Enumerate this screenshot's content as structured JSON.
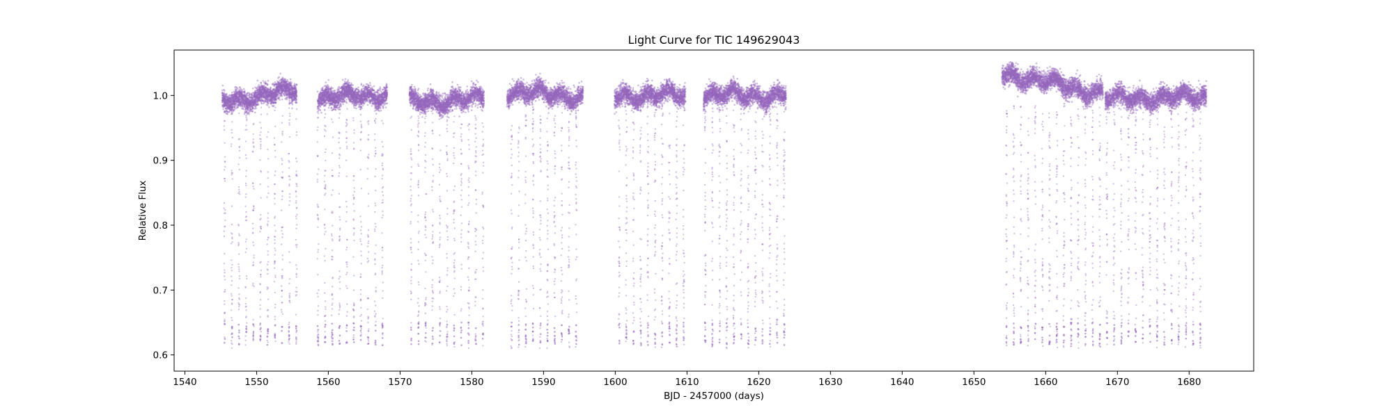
{
  "chart_data": {
    "type": "scatter",
    "title": "Light Curve for TIC 149629043",
    "xlabel": "BJD - 2457000 (days)",
    "ylabel": "Relative Flux",
    "xlim": [
      1538.5,
      1689
    ],
    "ylim": [
      0.575,
      1.07
    ],
    "xticks": [
      1540,
      1550,
      1560,
      1570,
      1580,
      1590,
      1600,
      1610,
      1620,
      1630,
      1640,
      1650,
      1660,
      1670,
      1680
    ],
    "yticks": [
      0.6,
      0.7,
      0.8,
      0.9,
      1.0
    ],
    "grid": false,
    "legend": "none",
    "marker_color": "#9467bd",
    "series": [
      {
        "segments": [
          {
            "x_start": 1545.2,
            "x_end": 1555.6,
            "baseline_start": 0.99,
            "baseline_end": 1.008
          },
          {
            "x_start": 1558.5,
            "x_end": 1568.2,
            "baseline_start": 0.995,
            "baseline_end": 1.002
          },
          {
            "x_start": 1571.3,
            "x_end": 1581.7,
            "baseline_start": 0.99,
            "baseline_end": 0.995
          },
          {
            "x_start": 1584.9,
            "x_end": 1595.5,
            "baseline_start": 1.005,
            "baseline_end": 0.998
          },
          {
            "x_start": 1599.9,
            "x_end": 1609.8,
            "baseline_start": 1.0,
            "baseline_end": 1.0
          },
          {
            "x_start": 1612.3,
            "x_end": 1623.8,
            "baseline_start": 1.0,
            "baseline_end": 1.0
          },
          {
            "x_start": 1653.9,
            "x_end": 1668.0,
            "baseline_start": 1.035,
            "baseline_end": 1.003
          },
          {
            "x_start": 1668.3,
            "x_end": 1682.4,
            "baseline_start": 0.995,
            "baseline_end": 0.998
          }
        ],
        "dip_period_days": 1.0,
        "dip_min_flux": 0.61,
        "scatter_flux": 0.012
      }
    ]
  }
}
